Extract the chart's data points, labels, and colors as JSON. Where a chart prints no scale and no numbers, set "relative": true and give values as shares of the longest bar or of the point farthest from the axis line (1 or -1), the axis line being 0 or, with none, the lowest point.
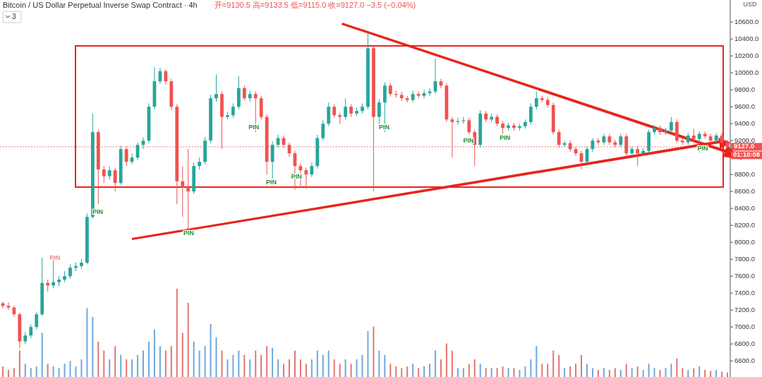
{
  "chart_data": [
    {
      "type": "candlestick",
      "title": "Bitcoin / US Dollar Perpetual Inverse Swap Contract · 4h",
      "subtitle": "开=9130.5 高=9133.5 低=9115.0 收=9127.0 −3.5 (−0.04%)",
      "ylabel": "USD",
      "tick_labels": "y",
      "ylim": [
        6410,
        10860
      ],
      "yticks": [
        {
          "value": 6600,
          "label": "6600.0"
        },
        {
          "value": 6800,
          "label": "6800.0"
        },
        {
          "value": 7000,
          "label": "7000.0"
        },
        {
          "value": 7200,
          "label": "7200.0"
        },
        {
          "value": 7400,
          "label": "7400.0"
        },
        {
          "value": 7600,
          "label": "7600.0"
        },
        {
          "value": 7800,
          "label": "7800.0"
        },
        {
          "value": 8000,
          "label": "8000.0"
        },
        {
          "value": 8200,
          "label": "8200.0"
        },
        {
          "value": 8400,
          "label": "8400.0"
        },
        {
          "value": 8600,
          "label": "8600.0"
        },
        {
          "value": 8800,
          "label": "8800.0"
        },
        {
          "value": 9000,
          "label": null
        },
        {
          "value": 9200,
          "label": "9200.0"
        },
        {
          "value": 9400,
          "label": "9400.0"
        },
        {
          "value": 9600,
          "label": "9600.0"
        },
        {
          "value": 9800,
          "label": "9800.0"
        },
        {
          "value": 10000,
          "label": "10000.0"
        },
        {
          "value": 10200,
          "label": "10200.0"
        },
        {
          "value": 10400,
          "label": "10400.0"
        },
        {
          "value": 10600,
          "label": "10600.0"
        }
      ],
      "categories": [
        null,
        null,
        null,
        null,
        null,
        null,
        null,
        null,
        null,
        null,
        null,
        null,
        null,
        null,
        null,
        null,
        null,
        null,
        null,
        null,
        null,
        null,
        null,
        null,
        null,
        null,
        null,
        null,
        null,
        null,
        null,
        null,
        null,
        null,
        null,
        null,
        null,
        null,
        null,
        null,
        null,
        null,
        null,
        null,
        null,
        null,
        null,
        null,
        null,
        null,
        null,
        null,
        null,
        null,
        null,
        null,
        null,
        null,
        null,
        null,
        null,
        null,
        null,
        null,
        null,
        null,
        null,
        null,
        null,
        null,
        null,
        null,
        null,
        null,
        null,
        null,
        null,
        null,
        null,
        null,
        null,
        null,
        null,
        null,
        null,
        null,
        null,
        null,
        null,
        null,
        null,
        null,
        null,
        null,
        null,
        null,
        null,
        null,
        null,
        null,
        null,
        null,
        null,
        null,
        null,
        null,
        null,
        null,
        null,
        null,
        null,
        null,
        null,
        null,
        null,
        null,
        null,
        null,
        null,
        null,
        null,
        null,
        null,
        null,
        null,
        null,
        null,
        null,
        null,
        null
      ],
      "ohlc": [
        [
          7280,
          7300,
          7220,
          7250
        ],
        [
          7250,
          7290,
          7200,
          7230
        ],
        [
          7230,
          7250,
          7120,
          7150
        ],
        [
          7150,
          7170,
          6750,
          6830
        ],
        [
          6830,
          6940,
          6800,
          6900
        ],
        [
          6900,
          7030,
          6870,
          7000
        ],
        [
          7000,
          7180,
          6970,
          7150
        ],
        [
          7150,
          7820,
          7130,
          7520
        ],
        [
          7520,
          7560,
          7420,
          7490
        ],
        [
          7490,
          7800,
          7460,
          7530
        ],
        [
          7530,
          7600,
          7480,
          7560
        ],
        [
          7560,
          7660,
          7530,
          7600
        ],
        [
          7600,
          7740,
          7570,
          7700
        ],
        [
          7700,
          7760,
          7660,
          7720
        ],
        [
          7720,
          7800,
          7690,
          7760
        ],
        [
          7760,
          8340,
          7740,
          8300
        ],
        [
          8300,
          9520,
          8280,
          9300
        ],
        [
          9300,
          9330,
          8450,
          8860
        ],
        [
          8860,
          8900,
          8700,
          8780
        ],
        [
          8780,
          8900,
          8740,
          8850
        ],
        [
          8850,
          8880,
          8600,
          8700
        ],
        [
          8700,
          9140,
          8680,
          9100
        ],
        [
          9100,
          9130,
          8900,
          8950
        ],
        [
          8950,
          9050,
          8920,
          9000
        ],
        [
          9000,
          9180,
          8970,
          9150
        ],
        [
          9150,
          9240,
          9100,
          9200
        ],
        [
          9200,
          9640,
          9170,
          9600
        ],
        [
          9600,
          10070,
          9570,
          9900
        ],
        [
          9900,
          10060,
          9870,
          10020
        ],
        [
          10020,
          10040,
          9860,
          9900
        ],
        [
          9900,
          9930,
          9560,
          9600
        ],
        [
          9600,
          9630,
          8450,
          8720
        ],
        [
          8720,
          8900,
          8300,
          8650
        ],
        [
          8650,
          9100,
          8150,
          8600
        ],
        [
          8600,
          8940,
          8570,
          8900
        ],
        [
          8900,
          9000,
          8860,
          8950
        ],
        [
          8950,
          9240,
          8920,
          9200
        ],
        [
          9200,
          9740,
          9170,
          9700
        ],
        [
          9700,
          9980,
          9660,
          9750
        ],
        [
          9750,
          9780,
          9100,
          9480
        ],
        [
          9480,
          9540,
          9450,
          9500
        ],
        [
          9500,
          9640,
          9470,
          9600
        ],
        [
          9600,
          9960,
          9570,
          9820
        ],
        [
          9820,
          9850,
          9670,
          9700
        ],
        [
          9700,
          9790,
          9660,
          9750
        ],
        [
          9750,
          9780,
          9300,
          9700
        ],
        [
          9700,
          9730,
          9450,
          9480
        ],
        [
          9480,
          9510,
          8800,
          8950
        ],
        [
          8950,
          9190,
          8750,
          9150
        ],
        [
          9150,
          9270,
          9120,
          9230
        ],
        [
          9230,
          9260,
          9120,
          9150
        ],
        [
          9150,
          9180,
          9010,
          9050
        ],
        [
          9050,
          9080,
          8620,
          8900
        ],
        [
          8900,
          8930,
          8640,
          8850
        ],
        [
          8850,
          8880,
          8630,
          8800
        ],
        [
          8800,
          8940,
          8770,
          8900
        ],
        [
          8900,
          9270,
          8870,
          9230
        ],
        [
          9230,
          9440,
          9200,
          9400
        ],
        [
          9400,
          9650,
          9370,
          9600
        ],
        [
          9600,
          9630,
          9470,
          9500
        ],
        [
          9500,
          9530,
          9400,
          9480
        ],
        [
          9480,
          9700,
          9450,
          9600
        ],
        [
          9600,
          9630,
          9480,
          9520
        ],
        [
          9520,
          9590,
          9490,
          9550
        ],
        [
          9550,
          9640,
          9520,
          9600
        ],
        [
          9600,
          10480,
          9570,
          10290
        ],
        [
          10290,
          10310,
          8600,
          9480
        ],
        [
          9480,
          9690,
          9400,
          9650
        ],
        [
          9650,
          9890,
          9300,
          9850
        ],
        [
          9850,
          9880,
          9720,
          9750
        ],
        [
          9750,
          9790,
          9710,
          9740
        ],
        [
          9740,
          9780,
          9670,
          9700
        ],
        [
          9700,
          9730,
          9650,
          9680
        ],
        [
          9680,
          9790,
          9650,
          9750
        ],
        [
          9750,
          9780,
          9700,
          9730
        ],
        [
          9730,
          9800,
          9700,
          9760
        ],
        [
          9760,
          9820,
          9730,
          9780
        ],
        [
          9780,
          10170,
          9750,
          9900
        ],
        [
          9900,
          9930,
          9820,
          9850
        ],
        [
          9850,
          9880,
          9420,
          9450
        ],
        [
          9450,
          9480,
          9000,
          9420
        ],
        [
          9420,
          9470,
          9390,
          9430
        ],
        [
          9430,
          9480,
          9400,
          9440
        ],
        [
          9440,
          9470,
          9270,
          9300
        ],
        [
          9300,
          9330,
          8900,
          9150
        ],
        [
          9150,
          9560,
          9120,
          9520
        ],
        [
          9520,
          9550,
          9420,
          9450
        ],
        [
          9450,
          9520,
          9420,
          9480
        ],
        [
          9480,
          9510,
          9370,
          9400
        ],
        [
          9400,
          9430,
          9280,
          9350
        ],
        [
          9350,
          9410,
          9320,
          9380
        ],
        [
          9380,
          9410,
          9320,
          9350
        ],
        [
          9350,
          9400,
          9320,
          9370
        ],
        [
          9370,
          9450,
          9340,
          9420
        ],
        [
          9420,
          9640,
          9390,
          9600
        ],
        [
          9600,
          9780,
          9570,
          9700
        ],
        [
          9700,
          9730,
          9650,
          9680
        ],
        [
          9680,
          9710,
          9590,
          9620
        ],
        [
          9620,
          9650,
          9270,
          9300
        ],
        [
          9300,
          9330,
          9120,
          9150
        ],
        [
          9150,
          9200,
          9120,
          9170
        ],
        [
          9170,
          9200,
          9070,
          9100
        ],
        [
          9100,
          9130,
          9020,
          9050
        ],
        [
          9050,
          9080,
          8860,
          8950
        ],
        [
          8950,
          9130,
          8920,
          9100
        ],
        [
          9100,
          9230,
          9070,
          9200
        ],
        [
          9200,
          9230,
          9150,
          9180
        ],
        [
          9180,
          9280,
          9150,
          9250
        ],
        [
          9250,
          9280,
          9150,
          9180
        ],
        [
          9180,
          9210,
          9120,
          9150
        ],
        [
          9150,
          9280,
          9120,
          9250
        ],
        [
          9250,
          9280,
          9020,
          9050
        ],
        [
          9050,
          9130,
          9020,
          9100
        ],
        [
          9100,
          9130,
          8900,
          9050
        ],
        [
          9050,
          9110,
          9020,
          9080
        ],
        [
          9080,
          9330,
          9050,
          9300
        ],
        [
          9300,
          9380,
          9270,
          9350
        ],
        [
          9350,
          9380,
          9270,
          9300
        ],
        [
          9300,
          9350,
          9270,
          9320
        ],
        [
          9320,
          9480,
          9290,
          9420
        ],
        [
          9420,
          9450,
          9170,
          9200
        ],
        [
          9200,
          9230,
          9150,
          9180
        ],
        [
          9180,
          9290,
          9150,
          9260
        ],
        [
          9260,
          9340,
          9190,
          9220
        ],
        [
          9220,
          9310,
          9060,
          9280
        ],
        [
          9280,
          9310,
          9220,
          9250
        ],
        [
          9250,
          9280,
          9170,
          9200
        ],
        [
          9200,
          9290,
          9170,
          9260
        ],
        [
          9260,
          9290,
          9150,
          9180
        ],
        [
          9180,
          9210,
          9110,
          9127
        ]
      ],
      "colors": [
        "#ef5350",
        "#ef5350",
        "#ef5350",
        "#ef5350",
        "#26a69a",
        "#26a69a",
        "#26a69a",
        "#26a69a",
        "#ef5350",
        "#26a69a",
        "#26a69a",
        "#26a69a",
        "#26a69a",
        "#26a69a",
        "#26a69a",
        "#26a69a",
        "#26a69a",
        "#ef5350",
        "#ef5350",
        "#26a69a",
        "#ef5350",
        "#26a69a",
        "#ef5350",
        "#26a69a",
        "#26a69a",
        "#26a69a",
        "#26a69a",
        "#26a69a",
        "#26a69a",
        "#ef5350",
        "#ef5350",
        "#ef5350",
        "#ef5350",
        "#ef5350",
        "#26a69a",
        "#26a69a",
        "#26a69a",
        "#26a69a",
        "#26a69a",
        "#ef5350",
        "#26a69a",
        "#26a69a",
        "#26a69a",
        "#ef5350",
        "#26a69a",
        "#ef5350",
        "#ef5350",
        "#ef5350",
        "#26a69a",
        "#26a69a",
        "#ef5350",
        "#ef5350",
        "#ef5350",
        "#ef5350",
        "#ef5350",
        "#26a69a",
        "#26a69a",
        "#26a69a",
        "#26a69a",
        "#ef5350",
        "#ef5350",
        "#26a69a",
        "#ef5350",
        "#26a69a",
        "#26a69a",
        "#26a69a",
        "#ef5350",
        "#26a69a",
        "#26a69a",
        "#ef5350",
        "#ef5350",
        "#ef5350",
        "#ef5350",
        "#26a69a",
        "#ef5350",
        "#26a69a",
        "#26a69a",
        "#26a69a",
        "#ef5350",
        "#ef5350",
        "#ef5350",
        "#26a69a",
        "#26a69a",
        "#ef5350",
        "#ef5350",
        "#26a69a",
        "#ef5350",
        "#26a69a",
        "#ef5350",
        "#ef5350",
        "#26a69a",
        "#ef5350",
        "#26a69a",
        "#26a69a",
        "#26a69a",
        "#26a69a",
        "#ef5350",
        "#ef5350",
        "#ef5350",
        "#ef5350",
        "#26a69a",
        "#ef5350",
        "#ef5350",
        "#ef5350",
        "#26a69a",
        "#26a69a",
        "#ef5350",
        "#26a69a",
        "#ef5350",
        "#ef5350",
        "#26a69a",
        "#ef5350",
        "#26a69a",
        "#ef5350",
        "#26a69a",
        "#26a69a",
        "#26a69a",
        "#ef5350",
        "#26a69a",
        "#26a69a",
        "#ef5350",
        "#ef5350",
        "#26a69a",
        "#ef5350",
        "#26a69a",
        "#ef5350",
        "#ef5350",
        "#26a69a",
        "#ef5350",
        "#ef5350"
      ],
      "ref_lines": [
        {
          "axis": "y",
          "value": 9127,
          "label": "9127.0",
          "color": "#ef5350",
          "line_style": "dotted"
        }
      ],
      "annotations": [
        "3",
        "01:10:08",
        "PIN",
        "PIN",
        "PIN",
        "PIN",
        "PIN",
        "PIN",
        "PIN",
        "PIN",
        "PIN",
        "PIN"
      ]
    },
    {
      "type": "bar",
      "relative": true,
      "categories": [
        null,
        null,
        null,
        null,
        null,
        null,
        null,
        null,
        null,
        null,
        null,
        null,
        null,
        null,
        null,
        null,
        null,
        null,
        null,
        null,
        null,
        null,
        null,
        null,
        null,
        null,
        null,
        null,
        null,
        null,
        null,
        null,
        null,
        null,
        null,
        null,
        null,
        null,
        null,
        null,
        null,
        null,
        null,
        null,
        null,
        null,
        null,
        null,
        null,
        null,
        null,
        null,
        null,
        null,
        null,
        null,
        null,
        null,
        null,
        null,
        null,
        null,
        null,
        null,
        null,
        null,
        null,
        null,
        null,
        null,
        null,
        null,
        null,
        null,
        null,
        null,
        null,
        null,
        null,
        null,
        null,
        null,
        null,
        null,
        null,
        null,
        null,
        null,
        null,
        null,
        null,
        null,
        null,
        null,
        null,
        null,
        null,
        null,
        null,
        null,
        null,
        null,
        null,
        null,
        null,
        null,
        null,
        null,
        null,
        null,
        null,
        null,
        null,
        null,
        null,
        null,
        null,
        null,
        null,
        null,
        null,
        null,
        null,
        null,
        null,
        null,
        null,
        null,
        null,
        null
      ],
      "values": [
        0.12,
        0.08,
        0.1,
        0.3,
        0.15,
        0.1,
        0.12,
        0.5,
        0.15,
        0.12,
        0.1,
        0.15,
        0.18,
        0.12,
        0.2,
        0.78,
        0.68,
        0.4,
        0.3,
        0.2,
        0.35,
        0.25,
        0.2,
        0.2,
        0.25,
        0.3,
        0.4,
        0.54,
        0.35,
        0.3,
        0.35,
        1,
        0.5,
        0.84,
        0.4,
        0.3,
        0.35,
        0.6,
        0.45,
        0.3,
        0.2,
        0.25,
        0.3,
        0.25,
        0.2,
        0.3,
        0.25,
        0.35,
        0.33,
        0.2,
        0.15,
        0.2,
        0.3,
        0.2,
        0.15,
        0.2,
        0.3,
        0.25,
        0.3,
        0.2,
        0.15,
        0.2,
        0.15,
        0.2,
        0.25,
        0.52,
        0.57,
        0.3,
        0.25,
        0.15,
        0.12,
        0.1,
        0.12,
        0.15,
        0.1,
        0.12,
        0.15,
        0.3,
        0.2,
        0.38,
        0.3,
        0.1,
        0.1,
        0.15,
        0.2,
        0.15,
        0.1,
        0.1,
        0.1,
        0.12,
        0.1,
        0.1,
        0.08,
        0.12,
        0.2,
        0.35,
        0.15,
        0.15,
        0.3,
        0.25,
        0.1,
        0.12,
        0.15,
        0.25,
        0.15,
        0.1,
        0.08,
        0.1,
        0.08,
        0.1,
        0.08,
        0.15,
        0.1,
        0.12,
        0.08,
        0.15,
        0.1,
        0.08,
        0.1,
        0.15,
        0.21,
        0.1,
        0.08,
        0.1,
        0.12,
        0.08,
        0.07,
        0.08,
        0.06,
        0.05
      ],
      "colors": [
        "#e57373",
        "#e57373",
        "#e57373",
        "#e57373",
        "#6fa8dc",
        "#6fa8dc",
        "#6fa8dc",
        "#6fa8dc",
        "#e57373",
        "#6fa8dc",
        "#6fa8dc",
        "#6fa8dc",
        "#6fa8dc",
        "#6fa8dc",
        "#6fa8dc",
        "#6fa8dc",
        "#6fa8dc",
        "#e57373",
        "#e57373",
        "#6fa8dc",
        "#e57373",
        "#6fa8dc",
        "#e57373",
        "#6fa8dc",
        "#6fa8dc",
        "#6fa8dc",
        "#6fa8dc",
        "#6fa8dc",
        "#6fa8dc",
        "#e57373",
        "#e57373",
        "#e57373",
        "#e57373",
        "#e57373",
        "#6fa8dc",
        "#6fa8dc",
        "#6fa8dc",
        "#6fa8dc",
        "#6fa8dc",
        "#e57373",
        "#6fa8dc",
        "#6fa8dc",
        "#6fa8dc",
        "#e57373",
        "#6fa8dc",
        "#e57373",
        "#e57373",
        "#e57373",
        "#6fa8dc",
        "#6fa8dc",
        "#e57373",
        "#e57373",
        "#e57373",
        "#e57373",
        "#e57373",
        "#6fa8dc",
        "#6fa8dc",
        "#6fa8dc",
        "#6fa8dc",
        "#e57373",
        "#e57373",
        "#6fa8dc",
        "#e57373",
        "#6fa8dc",
        "#6fa8dc",
        "#6fa8dc",
        "#e57373",
        "#6fa8dc",
        "#6fa8dc",
        "#e57373",
        "#e57373",
        "#e57373",
        "#e57373",
        "#6fa8dc",
        "#e57373",
        "#6fa8dc",
        "#6fa8dc",
        "#6fa8dc",
        "#e57373",
        "#e57373",
        "#e57373",
        "#6fa8dc",
        "#6fa8dc",
        "#e57373",
        "#e57373",
        "#6fa8dc",
        "#e57373",
        "#6fa8dc",
        "#e57373",
        "#e57373",
        "#6fa8dc",
        "#e57373",
        "#6fa8dc",
        "#6fa8dc",
        "#6fa8dc",
        "#6fa8dc",
        "#e57373",
        "#e57373",
        "#e57373",
        "#e57373",
        "#6fa8dc",
        "#e57373",
        "#e57373",
        "#e57373",
        "#6fa8dc",
        "#6fa8dc",
        "#e57373",
        "#6fa8dc",
        "#e57373",
        "#e57373",
        "#6fa8dc",
        "#e57373",
        "#6fa8dc",
        "#e57373",
        "#6fa8dc",
        "#6fa8dc",
        "#6fa8dc",
        "#e57373",
        "#6fa8dc",
        "#6fa8dc",
        "#e57373",
        "#e57373",
        "#6fa8dc",
        "#e57373",
        "#6fa8dc",
        "#e57373",
        "#e57373",
        "#6fa8dc",
        "#e57373",
        "#e57373"
      ]
    }
  ]
}
